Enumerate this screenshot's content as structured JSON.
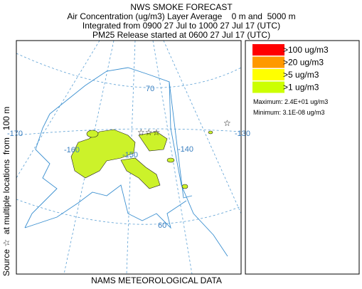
{
  "header": {
    "title": "NWS SMOKE FORECAST",
    "lines": [
      "Air Concentration (ug/m3) Layer Average    0 m and  5000 m",
      "Integrated from 0900 27 Jul to 1000 27 Jul 17 (UTC)",
      "PM25 Release started at 0600 27 Jul 17 (UTC)"
    ]
  },
  "side_label": "Source ☆  at multiple locations  from   100 m",
  "footer": "NAMS METEOROLOGICAL DATA",
  "map": {
    "graticule_labels": [
      "70",
      "-170",
      "-160",
      "-150",
      "-140",
      "-130",
      "60"
    ]
  },
  "legend": {
    "items": [
      {
        "label": ">100 ug/m3",
        "color": "#ff0000"
      },
      {
        "label": ">20 ug/m3",
        "color": "#ff9900"
      },
      {
        "label": ">5 ug/m3",
        "color": "#ffff00"
      },
      {
        "label": ">1 ug/m3",
        "color": "#ccff00"
      }
    ],
    "maximum": "Maximum: 2.4E+01 ug/m3",
    "minimum": "Minimum: 3.1E-08 ug/m3"
  }
}
